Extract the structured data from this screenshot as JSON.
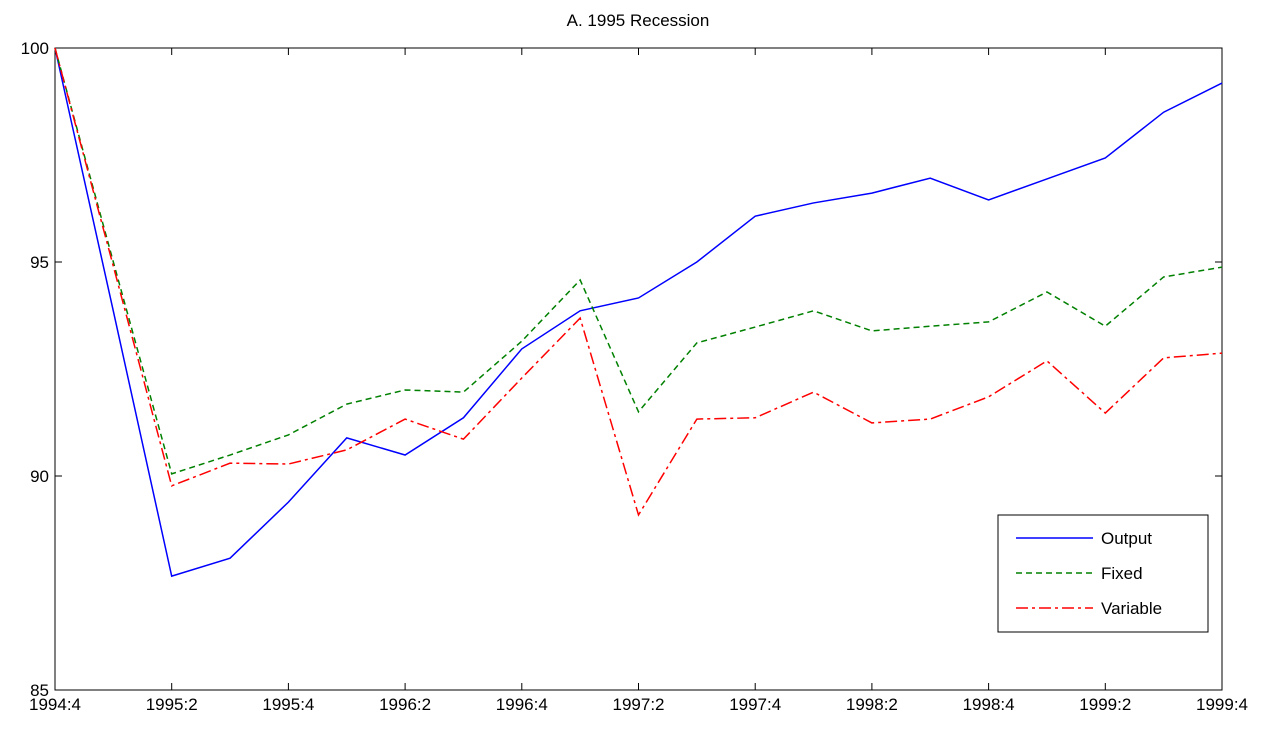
{
  "chart_data": {
    "type": "line",
    "title": "A. 1995 Recession",
    "categories": [
      "1994:4",
      null,
      "1995:2",
      null,
      "1995:4",
      null,
      "1996:2",
      null,
      "1996:4",
      null,
      "1997:2",
      null,
      "1997:4",
      null,
      "1998:2",
      null,
      "1998:4",
      null,
      "1999:2",
      null,
      "1999:4"
    ],
    "series": [
      {
        "name": "Output",
        "color": "#0000ff",
        "linestyle": "solid",
        "values": [
          100,
          93.85,
          87.66,
          88.08,
          89.39,
          90.89,
          90.49,
          91.36,
          92.97,
          93.86,
          94.16,
          95.0,
          96.07,
          96.38,
          96.61,
          96.96,
          96.45,
          96.94,
          97.43,
          98.5,
          99.18
        ]
      },
      {
        "name": "Fixed",
        "color": "#008000",
        "linestyle": "dashed",
        "values": [
          100,
          95.0,
          90.05,
          90.49,
          90.96,
          91.68,
          92.01,
          91.96,
          93.15,
          94.58,
          91.5,
          93.11,
          93.48,
          93.86,
          93.39,
          93.5,
          93.6,
          94.3,
          93.5,
          94.65,
          94.88
        ]
      },
      {
        "name": "Variable",
        "color": "#ff0000",
        "linestyle": "dashdot",
        "values": [
          100,
          94.9,
          89.77,
          90.3,
          90.28,
          90.61,
          91.33,
          90.86,
          92.29,
          93.69,
          89.09,
          91.33,
          91.36,
          91.96,
          91.24,
          91.33,
          91.85,
          92.69,
          91.47,
          92.76,
          92.87
        ]
      }
    ],
    "ylim": [
      85,
      100
    ],
    "yticks": [
      85,
      90,
      95,
      100
    ],
    "grid": false,
    "legend": "lower right"
  }
}
